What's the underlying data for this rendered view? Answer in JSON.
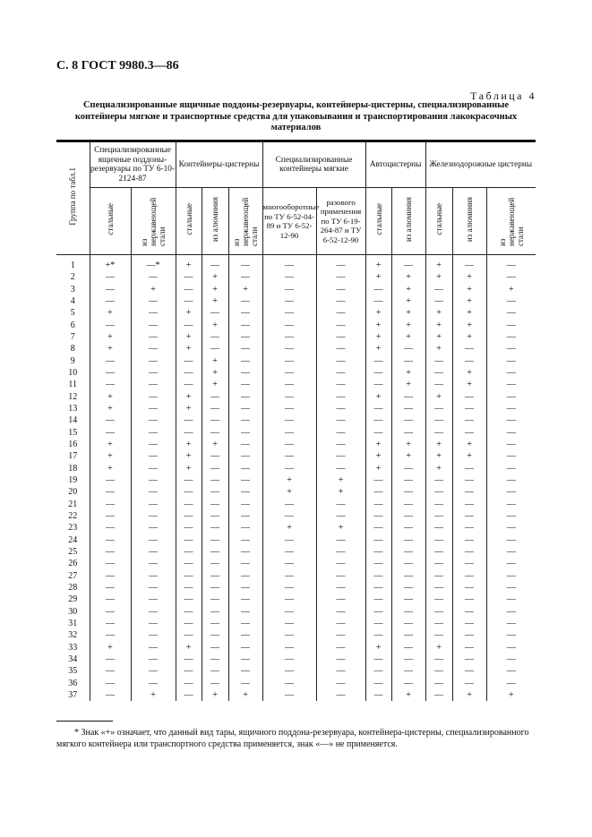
{
  "page_header": "С. 8 ГОСТ 9980.3—86",
  "table_number": "Таблица 4",
  "table_title": "Специализированные ящичные поддоны-резервуары, контейнеры-цистерны, специализированные контейнеры мягкие и транспортные средства для упаковывания и транспортирования лакокрасочных материалов",
  "headers": {
    "group": "Группа по табл.1",
    "pallets": "Специализированные ящичные поддоны-резервуары по ТУ 6-10-2124-87",
    "tank_containers": "Контейнеры-цистерны",
    "soft_containers": "Специализированные контейнеры мягкие",
    "reusable": "многооборотные по ТУ 6-52-04-89 и ТУ 6-52-12-90",
    "single_use": "разового применения по ТУ 6-19-264-87 и ТУ 6-52-12-90",
    "road_tankers": "Автоцистерны",
    "rail_tankers": "Железнодорожные цистерны",
    "steel": "стальные",
    "stainless": "из нержавеющей стали",
    "aluminium": "из алюминия"
  },
  "rows": [
    [
      "1",
      "+*",
      "—*",
      "+",
      "—",
      "—",
      "—",
      "—",
      "+",
      "—",
      "+",
      "—",
      "—"
    ],
    [
      "2",
      "—",
      "—",
      "—",
      "+",
      "—",
      "—",
      "—",
      "+",
      "+",
      "+",
      "+",
      "—"
    ],
    [
      "3",
      "—",
      "+",
      "—",
      "+",
      "+",
      "—",
      "—",
      "—",
      "+",
      "—",
      "+",
      "+"
    ],
    [
      "4",
      "—",
      "—",
      "—",
      "+",
      "—",
      "—",
      "—",
      "—",
      "+",
      "—",
      "+",
      "—"
    ],
    [
      "5",
      "+",
      "—",
      "+",
      "—",
      "—",
      "—",
      "—",
      "+",
      "+",
      "+",
      "+",
      "—"
    ],
    [
      "6",
      "—",
      "—",
      "—",
      "+",
      "—",
      "—",
      "—",
      "+",
      "+",
      "+",
      "+",
      "—"
    ],
    [
      "7",
      "+",
      "—",
      "+",
      "—",
      "—",
      "—",
      "—",
      "+",
      "+",
      "+",
      "+",
      "—"
    ],
    [
      "8",
      "+",
      "—",
      "+",
      "—",
      "—",
      "—",
      "—",
      "+",
      "—",
      "+",
      "—",
      "—"
    ],
    [
      "9",
      "—",
      "—",
      "—",
      "+",
      "—",
      "—",
      "—",
      "—",
      "—",
      "—",
      "—",
      "—"
    ],
    [
      "10",
      "—",
      "—",
      "—",
      "+",
      "—",
      "—",
      "—",
      "—",
      "+",
      "—",
      "+",
      "—"
    ],
    [
      "11",
      "—",
      "—",
      "—",
      "+",
      "—",
      "—",
      "—",
      "—",
      "+",
      "—",
      "+",
      "—"
    ],
    [
      "12",
      "+",
      "—",
      "+",
      "—",
      "—",
      "—",
      "—",
      "+",
      "—",
      "+",
      "—",
      "—"
    ],
    [
      "13",
      "+",
      "—",
      "+",
      "—",
      "—",
      "—",
      "—",
      "—",
      "—",
      "—",
      "—",
      "—"
    ],
    [
      "14",
      "—",
      "—",
      "—",
      "—",
      "—",
      "—",
      "—",
      "—",
      "—",
      "—",
      "—",
      "—"
    ],
    [
      "15",
      "—",
      "—",
      "—",
      "—",
      "—",
      "—",
      "—",
      "—",
      "—",
      "—",
      "—",
      "—"
    ],
    [
      "16",
      "+",
      "—",
      "+",
      "+",
      "—",
      "—",
      "—",
      "+",
      "+",
      "+",
      "+",
      "—"
    ],
    [
      "17",
      "+",
      "—",
      "+",
      "—",
      "—",
      "—",
      "—",
      "+",
      "+",
      "+",
      "+",
      "—"
    ],
    [
      "18",
      "+",
      "—",
      "+",
      "—",
      "—",
      "—",
      "—",
      "+",
      "—",
      "+",
      "—",
      "—"
    ],
    [
      "19",
      "—",
      "—",
      "—",
      "—",
      "—",
      "+",
      "+",
      "—",
      "—",
      "—",
      "—",
      "—"
    ],
    [
      "20",
      "—",
      "—",
      "—",
      "—",
      "—",
      "+",
      "+",
      "—",
      "—",
      "—",
      "—",
      "—"
    ],
    [
      "21",
      "—",
      "—",
      "—",
      "—",
      "—",
      "—",
      "—",
      "—",
      "—",
      "—",
      "—",
      "—"
    ],
    [
      "22",
      "—",
      "—",
      "—",
      "—",
      "—",
      "—",
      "—",
      "—",
      "—",
      "—",
      "—",
      "—"
    ],
    [
      "23",
      "—",
      "—",
      "—",
      "—",
      "—",
      "+",
      "+",
      "—",
      "—",
      "—",
      "—",
      "—"
    ],
    [
      "24",
      "—",
      "—",
      "—",
      "—",
      "—",
      "—",
      "—",
      "—",
      "—",
      "—",
      "—",
      "—"
    ],
    [
      "25",
      "—",
      "—",
      "—",
      "—",
      "—",
      "—",
      "—",
      "—",
      "—",
      "—",
      "—",
      "—"
    ],
    [
      "26",
      "—",
      "—",
      "—",
      "—",
      "—",
      "—",
      "—",
      "—",
      "—",
      "—",
      "—",
      "—"
    ],
    [
      "27",
      "—",
      "—",
      "—",
      "—",
      "—",
      "—",
      "—",
      "—",
      "—",
      "—",
      "—",
      "—"
    ],
    [
      "28",
      "—",
      "—",
      "—",
      "—",
      "—",
      "—",
      "—",
      "—",
      "—",
      "—",
      "—",
      "—"
    ],
    [
      "29",
      "—",
      "—",
      "—",
      "—",
      "—",
      "—",
      "—",
      "—",
      "—",
      "—",
      "—",
      "—"
    ],
    [
      "30",
      "—",
      "—",
      "—",
      "—",
      "—",
      "—",
      "—",
      "—",
      "—",
      "—",
      "—",
      "—"
    ],
    [
      "31",
      "—",
      "—",
      "—",
      "—",
      "—",
      "—",
      "—",
      "—",
      "—",
      "—",
      "—",
      "—"
    ],
    [
      "32",
      "—",
      "—",
      "—",
      "—",
      "—",
      "—",
      "—",
      "—",
      "—",
      "—",
      "—",
      "—"
    ],
    [
      "33",
      "+",
      "—",
      "+",
      "—",
      "—",
      "—",
      "—",
      "+",
      "—",
      "+",
      "—",
      "—"
    ],
    [
      "34",
      "—",
      "—",
      "—",
      "—",
      "—",
      "—",
      "—",
      "—",
      "—",
      "—",
      "—",
      "—"
    ],
    [
      "35",
      "—",
      "—",
      "—",
      "—",
      "—",
      "—",
      "—",
      "—",
      "—",
      "—",
      "—",
      "—"
    ],
    [
      "36",
      "—",
      "—",
      "—",
      "—",
      "—",
      "—",
      "—",
      "—",
      "—",
      "—",
      "—",
      "—"
    ],
    [
      "37",
      "—",
      "+",
      "—",
      "+",
      "+",
      "—",
      "—",
      "—",
      "+",
      "—",
      "+",
      "+"
    ]
  ],
  "footnote": "* Знак «+» означает, что данный вид тары, ящичного поддона-резервуара, контейнера-цистерны, специализированного мягкого контейнера или транспортного средства применяется, знак «—» не применяется."
}
